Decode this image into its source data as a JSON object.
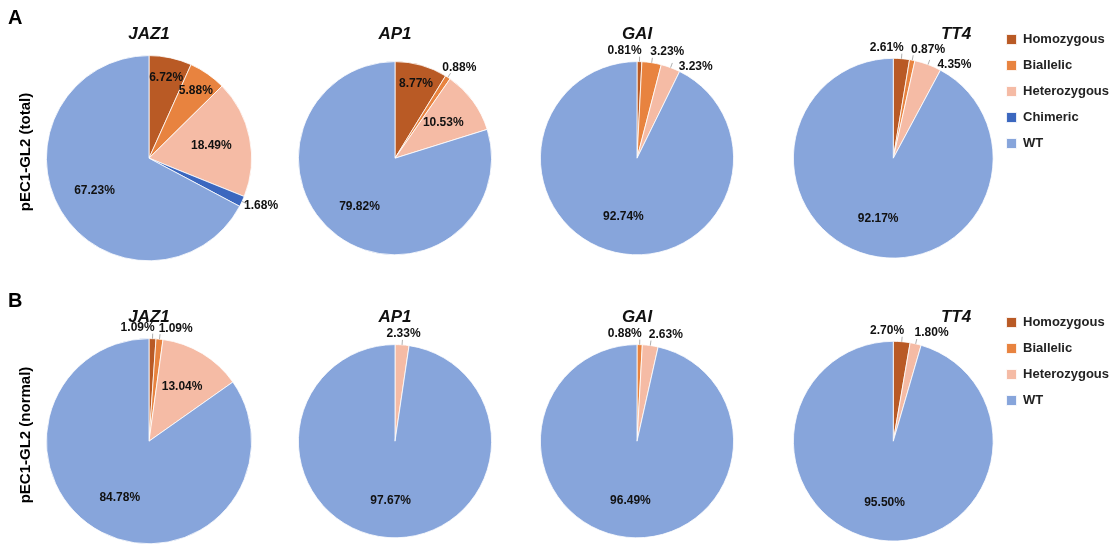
{
  "chart_data": [
    {
      "type": "pie",
      "title": "JAZ1",
      "ylabel": "pEC1-GL2 (total)",
      "annotations": [
        "A"
      ],
      "categories": [
        null,
        null,
        null,
        null,
        null
      ],
      "values": [
        6.72,
        5.88,
        18.49,
        1.68,
        67.23
      ],
      "colors": [
        "#b95a25",
        "#e8833f",
        "#f5bba5",
        "#3b67bf",
        "#87a5db"
      ],
      "value_labels": [
        "6.72%",
        "5.88%",
        "18.49%",
        "1.68%",
        "67.23%"
      ]
    },
    {
      "type": "pie",
      "title": "AP1",
      "categories": [
        null,
        null,
        null,
        null
      ],
      "values": [
        8.77,
        0.88,
        10.53,
        79.82
      ],
      "colors": [
        "#b95a25",
        "#e8833f",
        "#f5bba5",
        "#87a5db"
      ],
      "value_labels": [
        "8.77%",
        "0.88%",
        "10.53%",
        "79.82%"
      ]
    },
    {
      "type": "pie",
      "title": "GAI",
      "categories": [
        null,
        null,
        null,
        null
      ],
      "values": [
        0.81,
        3.23,
        3.23,
        92.74
      ],
      "colors": [
        "#b95a25",
        "#e8833f",
        "#f5bba5",
        "#87a5db"
      ],
      "value_labels": [
        "0.81%",
        "3.23%",
        "3.23%",
        "92.74%"
      ]
    },
    {
      "type": "pie",
      "title": "TT4",
      "legend": "right",
      "categories": [
        "Homozygous",
        "Biallelic",
        "Heterozygous",
        "Chimeric",
        "WT"
      ],
      "values": [
        2.61,
        0.87,
        4.35,
        0,
        92.17
      ],
      "colors": [
        "#b95a25",
        "#e8833f",
        "#f5bba5",
        "#3b67bf",
        "#87a5db"
      ],
      "value_labels": [
        "2.61%",
        "0.87%",
        "4.35%",
        null,
        "92.17%"
      ]
    },
    {
      "type": "pie",
      "title": "JAZ1",
      "ylabel": "pEC1-GL2 (normal)",
      "annotations": [
        "B"
      ],
      "categories": [
        null,
        null,
        null,
        null
      ],
      "values": [
        1.09,
        1.09,
        13.04,
        84.78
      ],
      "colors": [
        "#b95a25",
        "#e8833f",
        "#f5bba5",
        "#87a5db"
      ],
      "value_labels": [
        "1.09%",
        "1.09%",
        "13.04%",
        "84.78%"
      ]
    },
    {
      "type": "pie",
      "title": "AP1",
      "categories": [
        null,
        null
      ],
      "values": [
        2.33,
        97.67
      ],
      "colors": [
        "#f5bba5",
        "#87a5db"
      ],
      "value_labels": [
        "2.33%",
        "97.67%"
      ]
    },
    {
      "type": "pie",
      "title": "GAI",
      "categories": [
        null,
        null,
        null
      ],
      "values": [
        0.88,
        2.63,
        96.49
      ],
      "colors": [
        "#e8833f",
        "#f5bba5",
        "#87a5db"
      ],
      "value_labels": [
        "0.88%",
        "2.63%",
        "96.49%"
      ]
    },
    {
      "type": "pie",
      "title": "TT4",
      "legend": "right",
      "categories": [
        "Homozygous",
        "Biallelic",
        "Heterozygous",
        "WT"
      ],
      "values": [
        2.7,
        0,
        1.8,
        95.5
      ],
      "colors": [
        "#b95a25",
        "#e8833f",
        "#f5bba5",
        "#87a5db"
      ],
      "value_labels": [
        "2.70%",
        null,
        "1.80%",
        "95.50%"
      ]
    }
  ]
}
